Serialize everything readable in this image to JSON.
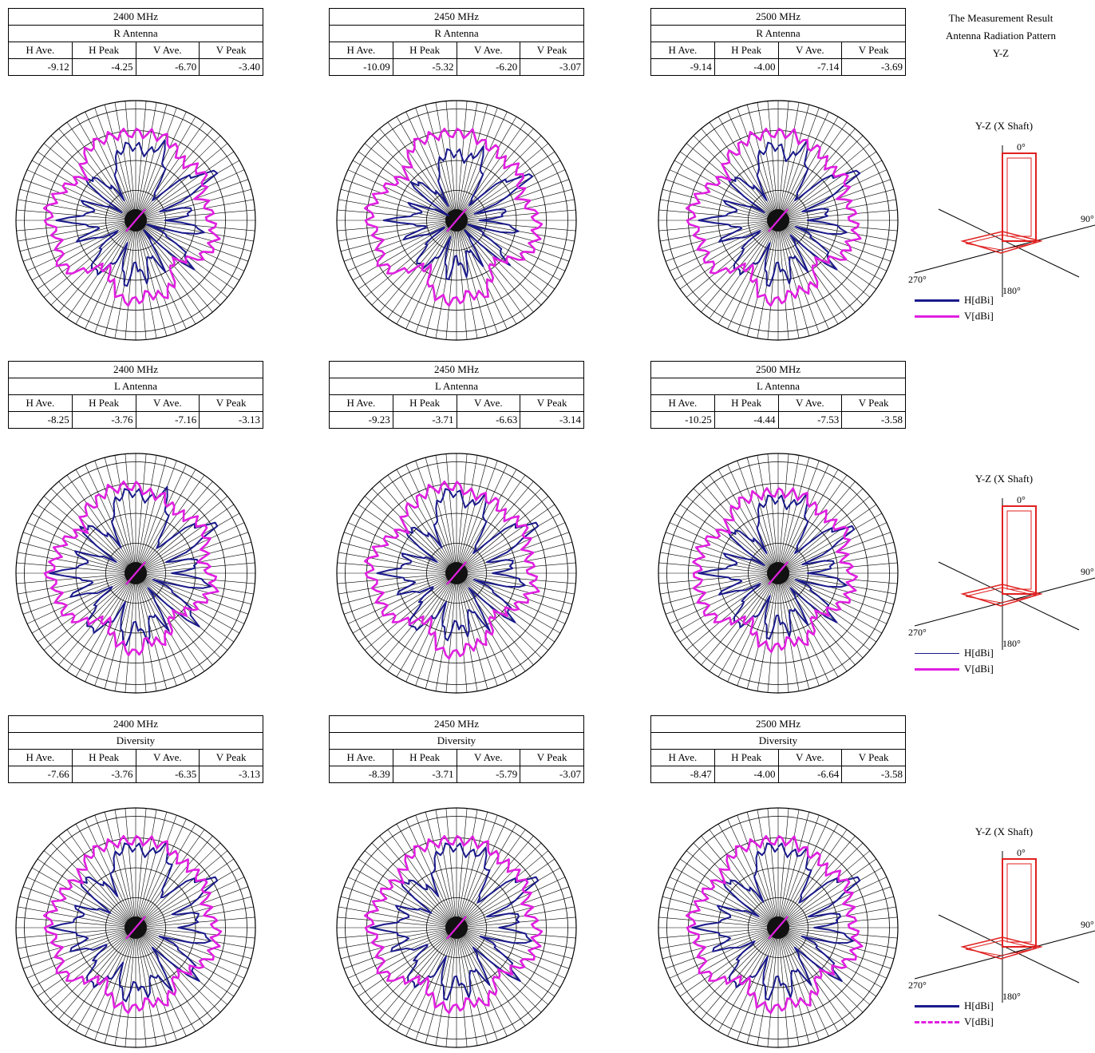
{
  "header": {
    "line1": "The Measurement Result",
    "line2": "Antenna Radiation Pattern",
    "line3": "Y-Z"
  },
  "column_headers": [
    "H Ave.",
    "H Peak",
    "V Ave.",
    "V Peak"
  ],
  "colors": {
    "h_series": "#1a1a8c",
    "v_series": "#e020e0",
    "model": "#e02020"
  },
  "rows": [
    {
      "antenna": "R Antenna",
      "axes": {
        "title": "Y-Z (X Shaft)",
        "deg0": "0°",
        "deg90": "90°",
        "deg180": "180°",
        "deg270": "270°"
      },
      "legend": {
        "h": "H[dBi]",
        "v": "V[dBi]",
        "v_style": "solid",
        "h_width": 3
      },
      "panels": [
        {
          "freq": "2400 MHz",
          "values": [
            "-9.12",
            "-4.25",
            "-6.70",
            "-3.40"
          ]
        },
        {
          "freq": "2450 MHz",
          "values": [
            "-10.09",
            "-5.32",
            "-6.20",
            "-3.07"
          ]
        },
        {
          "freq": "2500 MHz",
          "values": [
            "-9.14",
            "-4.00",
            "-7.14",
            "-3.69"
          ]
        }
      ]
    },
    {
      "antenna": "L Antenna",
      "axes": {
        "title": "Y-Z (X Shaft)",
        "deg0": "0°",
        "deg90": "90°",
        "deg180": "180°",
        "deg270": "270°"
      },
      "legend": {
        "h": "H[dBi]",
        "v": "V[dBi]",
        "v_style": "solid",
        "h_width": 1
      },
      "panels": [
        {
          "freq": "2400 MHz",
          "values": [
            "-8.25",
            "-3.76",
            "-7.16",
            "-3.13"
          ]
        },
        {
          "freq": "2450 MHz",
          "values": [
            "-9.23",
            "-3.71",
            "-6.63",
            "-3.14"
          ]
        },
        {
          "freq": "2500 MHz",
          "values": [
            "-10.25",
            "-4.44",
            "-7.53",
            "-3.58"
          ]
        }
      ]
    },
    {
      "antenna": "Diversity",
      "axes": {
        "title": "Y-Z (X Shaft)",
        "deg0": "0°",
        "deg90": "90°",
        "deg180": "180°",
        "deg270": "270°"
      },
      "legend": {
        "h": "H[dBi]",
        "v": "V[dBi]",
        "v_style": "dashed",
        "h_width": 3
      },
      "panels": [
        {
          "freq": "2400 MHz",
          "values": [
            "-7.66",
            "-3.76",
            "-6.35",
            "-3.13"
          ]
        },
        {
          "freq": "2450 MHz",
          "values": [
            "-8.39",
            "-3.71",
            "-5.79",
            "-3.07"
          ]
        },
        {
          "freq": "2500 MHz",
          "values": [
            "-8.47",
            "-4.00",
            "-6.64",
            "-3.58"
          ]
        }
      ]
    }
  ],
  "chart_data": [
    {
      "type": "polar",
      "row": 0,
      "col": 0,
      "series": [
        {
          "name": "H[dBi]",
          "base": -12.0,
          "profile": [
            -6,
            -7,
            -5,
            -9,
            -14,
            -7,
            -3,
            -13,
            -8,
            -12,
            -6,
            -15,
            -10,
            -6,
            -16,
            -9,
            -12,
            -8,
            -11,
            -7,
            -13,
            -9,
            -7,
            -10,
            -14,
            -8,
            -12,
            -6,
            -11,
            -9,
            -15,
            -7,
            -10,
            -13,
            -8,
            -6
          ]
        },
        {
          "name": "V[dBi]",
          "base": -5.5,
          "profile": [
            -4,
            -4,
            -4,
            -5,
            -6,
            -5,
            -5,
            -7,
            -6,
            -6,
            -5,
            -5,
            -6,
            -8,
            -9,
            -6,
            -5,
            -6,
            -5,
            -5,
            -7,
            -9,
            -8,
            -5,
            -4,
            -5,
            -5,
            -4,
            -4,
            -5,
            -6,
            -7,
            -5,
            -4,
            -4,
            -4
          ]
        }
      ]
    },
    {
      "type": "polar",
      "row": 0,
      "col": 1,
      "series": [
        {
          "name": "H[dBi]",
          "base": -12.5,
          "profile": [
            -7,
            -8,
            -6,
            -10,
            -15,
            -8,
            -4,
            -14,
            -9,
            -13,
            -7,
            -15,
            -11,
            -7,
            -16,
            -10,
            -13,
            -9,
            -12,
            -8,
            -14,
            -10,
            -8,
            -11,
            -15,
            -9,
            -13,
            -7,
            -12,
            -10,
            -16,
            -8,
            -11,
            -14,
            -9,
            -7
          ]
        },
        {
          "name": "V[dBi]",
          "base": -5.3,
          "profile": [
            -4,
            -4,
            -5,
            -5,
            -6,
            -5,
            -6,
            -7,
            -6,
            -5,
            -5,
            -5,
            -6,
            -8,
            -9,
            -7,
            -5,
            -6,
            -5,
            -5,
            -6,
            -9,
            -8,
            -5,
            -4,
            -5,
            -5,
            -4,
            -4,
            -5,
            -6,
            -7,
            -6,
            -4,
            -4,
            -4
          ]
        }
      ]
    },
    {
      "type": "polar",
      "row": 0,
      "col": 2,
      "series": [
        {
          "name": "H[dBi]",
          "base": -12.2,
          "profile": [
            -6,
            -8,
            -5,
            -9,
            -14,
            -7,
            -3,
            -13,
            -9,
            -12,
            -6,
            -14,
            -10,
            -6,
            -15,
            -9,
            -12,
            -8,
            -11,
            -7,
            -13,
            -9,
            -7,
            -10,
            -14,
            -8,
            -12,
            -6,
            -11,
            -9,
            -15,
            -7,
            -10,
            -13,
            -8,
            -6
          ]
        },
        {
          "name": "V[dBi]",
          "base": -6.0,
          "profile": [
            -4,
            -4,
            -5,
            -5,
            -6,
            -6,
            -5,
            -7,
            -6,
            -6,
            -5,
            -6,
            -6,
            -8,
            -9,
            -6,
            -6,
            -6,
            -5,
            -5,
            -7,
            -9,
            -8,
            -5,
            -5,
            -5,
            -5,
            -4,
            -4,
            -5,
            -6,
            -7,
            -5,
            -5,
            -4,
            -4
          ]
        }
      ]
    },
    {
      "type": "polar",
      "row": 1,
      "col": 0,
      "series": [
        {
          "name": "H[dBi]",
          "base": -11.0,
          "profile": [
            -5,
            -6,
            -4,
            -8,
            -13,
            -6,
            -3,
            -12,
            -7,
            -11,
            -5,
            -14,
            -9,
            -5,
            -15,
            -8,
            -11,
            -7,
            -10,
            -6,
            -12,
            -8,
            -6,
            -9,
            -13,
            -7,
            -11,
            -5,
            -10,
            -8,
            -14,
            -6,
            -9,
            -12,
            -7,
            -5
          ]
        },
        {
          "name": "V[dBi]",
          "base": -6.0,
          "profile": [
            -4,
            -5,
            -5,
            -6,
            -6,
            -5,
            -5,
            -6,
            -7,
            -6,
            -5,
            -6,
            -7,
            -8,
            -9,
            -7,
            -6,
            -7,
            -5,
            -6,
            -7,
            -9,
            -8,
            -6,
            -5,
            -5,
            -5,
            -4,
            -5,
            -5,
            -6,
            -7,
            -5,
            -5,
            -4,
            -4
          ]
        }
      ]
    },
    {
      "type": "polar",
      "row": 1,
      "col": 1,
      "series": [
        {
          "name": "H[dBi]",
          "base": -11.5,
          "profile": [
            -5,
            -7,
            -5,
            -9,
            -14,
            -6,
            -3,
            -12,
            -8,
            -11,
            -6,
            -14,
            -9,
            -6,
            -15,
            -8,
            -12,
            -8,
            -10,
            -7,
            -12,
            -9,
            -6,
            -10,
            -13,
            -8,
            -11,
            -6,
            -10,
            -9,
            -14,
            -7,
            -9,
            -12,
            -8,
            -5
          ]
        },
        {
          "name": "V[dBi]",
          "base": -5.8,
          "profile": [
            -4,
            -5,
            -5,
            -5,
            -6,
            -5,
            -5,
            -6,
            -6,
            -6,
            -5,
            -6,
            -7,
            -8,
            -9,
            -7,
            -6,
            -6,
            -5,
            -5,
            -7,
            -9,
            -8,
            -6,
            -5,
            -5,
            -5,
            -4,
            -4,
            -5,
            -6,
            -7,
            -5,
            -5,
            -4,
            -4
          ]
        }
      ]
    },
    {
      "type": "polar",
      "row": 1,
      "col": 2,
      "series": [
        {
          "name": "H[dBi]",
          "base": -12.0,
          "profile": [
            -6,
            -7,
            -5,
            -9,
            -14,
            -7,
            -4,
            -13,
            -8,
            -12,
            -6,
            -14,
            -10,
            -6,
            -15,
            -9,
            -12,
            -8,
            -11,
            -7,
            -13,
            -9,
            -7,
            -10,
            -14,
            -8,
            -12,
            -6,
            -11,
            -9,
            -15,
            -7,
            -10,
            -13,
            -8,
            -6
          ]
        },
        {
          "name": "V[dBi]",
          "base": -6.3,
          "profile": [
            -5,
            -5,
            -5,
            -6,
            -6,
            -6,
            -5,
            -7,
            -7,
            -6,
            -6,
            -6,
            -7,
            -8,
            -9,
            -7,
            -6,
            -7,
            -6,
            -6,
            -7,
            -9,
            -8,
            -6,
            -5,
            -5,
            -5,
            -5,
            -5,
            -5,
            -6,
            -7,
            -6,
            -5,
            -5,
            -5
          ]
        }
      ]
    },
    {
      "type": "polar",
      "row": 2,
      "col": 0,
      "series": [
        {
          "name": "H[dBi]",
          "base": -10.5,
          "profile": [
            -5,
            -6,
            -4,
            -7,
            -12,
            -6,
            -3,
            -11,
            -7,
            -10,
            -5,
            -13,
            -8,
            -5,
            -14,
            -7,
            -10,
            -7,
            -9,
            -6,
            -11,
            -8,
            -6,
            -9,
            -12,
            -7,
            -10,
            -5,
            -9,
            -8,
            -13,
            -6,
            -8,
            -11,
            -7,
            -5
          ]
        },
        {
          "name": "V[dBi]",
          "base": -5.0,
          "profile": [
            -4,
            -4,
            -4,
            -5,
            -5,
            -5,
            -5,
            -6,
            -6,
            -5,
            -5,
            -5,
            -6,
            -7,
            -8,
            -6,
            -5,
            -6,
            -5,
            -5,
            -6,
            -8,
            -7,
            -5,
            -4,
            -5,
            -5,
            -4,
            -4,
            -5,
            -5,
            -6,
            -5,
            -4,
            -4,
            -4
          ]
        }
      ]
    },
    {
      "type": "polar",
      "row": 2,
      "col": 1,
      "series": [
        {
          "name": "H[dBi]",
          "base": -11.0,
          "profile": [
            -5,
            -6,
            -5,
            -8,
            -13,
            -6,
            -3,
            -12,
            -7,
            -10,
            -5,
            -13,
            -9,
            -5,
            -14,
            -8,
            -11,
            -7,
            -10,
            -6,
            -12,
            -8,
            -6,
            -9,
            -12,
            -7,
            -10,
            -5,
            -10,
            -8,
            -13,
            -6,
            -9,
            -11,
            -7,
            -5
          ]
        },
        {
          "name": "V[dBi]",
          "base": -4.8,
          "profile": [
            -4,
            -4,
            -4,
            -5,
            -5,
            -5,
            -5,
            -6,
            -6,
            -5,
            -5,
            -5,
            -6,
            -7,
            -8,
            -6,
            -5,
            -6,
            -5,
            -5,
            -6,
            -8,
            -7,
            -5,
            -4,
            -5,
            -5,
            -4,
            -4,
            -5,
            -5,
            -6,
            -5,
            -4,
            -4,
            -4
          ]
        }
      ]
    },
    {
      "type": "polar",
      "row": 2,
      "col": 2,
      "series": [
        {
          "name": "H[dBi]",
          "base": -11.2,
          "profile": [
            -5,
            -6,
            -5,
            -8,
            -13,
            -6,
            -3,
            -12,
            -7,
            -11,
            -5,
            -13,
            -9,
            -5,
            -14,
            -8,
            -11,
            -7,
            -10,
            -6,
            -12,
            -8,
            -6,
            -9,
            -13,
            -7,
            -10,
            -5,
            -10,
            -8,
            -14,
            -6,
            -9,
            -12,
            -7,
            -5
          ]
        },
        {
          "name": "V[dBi]",
          "base": -5.5,
          "profile": [
            -4,
            -4,
            -5,
            -5,
            -6,
            -5,
            -5,
            -6,
            -6,
            -6,
            -5,
            -5,
            -6,
            -7,
            -8,
            -6,
            -5,
            -6,
            -5,
            -5,
            -6,
            -8,
            -7,
            -5,
            -4,
            -5,
            -5,
            -4,
            -4,
            -5,
            -5,
            -6,
            -5,
            -4,
            -4,
            -4
          ]
        }
      ]
    }
  ]
}
